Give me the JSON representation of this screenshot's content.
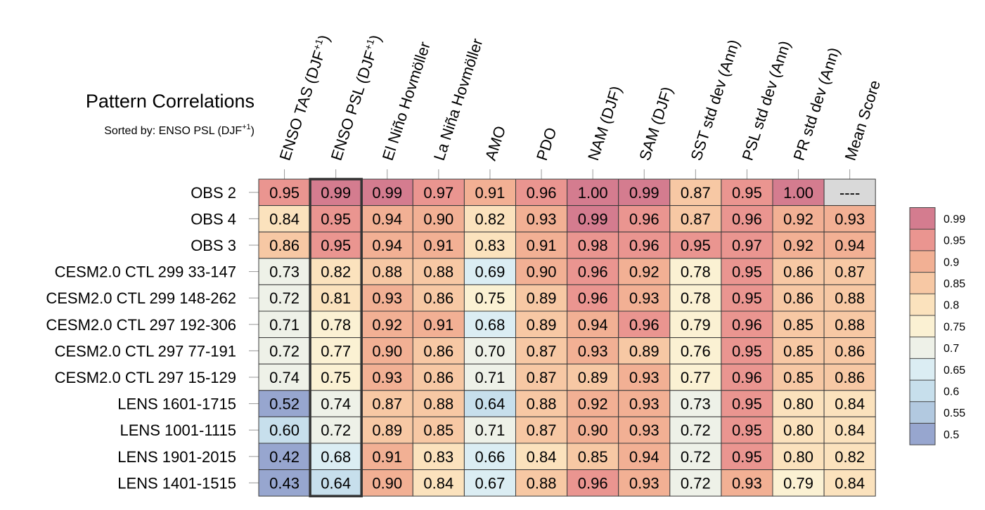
{
  "chart_data": {
    "type": "heatmap",
    "title": "Pattern Correlations",
    "subtitle_prefix": "Sorted by: ENSO PSL (DJF",
    "subtitle_sup": "+1",
    "subtitle_suffix": ")",
    "sorted_by_column": 1,
    "columns": [
      {
        "label": "ENSO TAS (DJF",
        "sup": "+1",
        "suffix": ")"
      },
      {
        "label": "ENSO PSL (DJF",
        "sup": "+1",
        "suffix": ")"
      },
      {
        "label": "El Niño Hovmöller",
        "sup": "",
        "suffix": ""
      },
      {
        "label": "La Niña Hovmöller",
        "sup": "",
        "suffix": ""
      },
      {
        "label": "AMO",
        "sup": "",
        "suffix": ""
      },
      {
        "label": "PDO",
        "sup": "",
        "suffix": ""
      },
      {
        "label": "NAM (DJF)",
        "sup": "",
        "suffix": ""
      },
      {
        "label": "SAM (DJF)",
        "sup": "",
        "suffix": ""
      },
      {
        "label": "SST std dev (Ann)",
        "sup": "",
        "suffix": ""
      },
      {
        "label": "PSL std dev (Ann)",
        "sup": "",
        "suffix": ""
      },
      {
        "label": "PR std dev (Ann)",
        "sup": "",
        "suffix": ""
      },
      {
        "label": "Mean Score",
        "sup": "",
        "suffix": ""
      }
    ],
    "rows": [
      "OBS 2",
      "OBS 4",
      "OBS 3",
      "CESM2.0 CTL 299 33-147",
      "CESM2.0 CTL 299 148-262",
      "CESM2.0 CTL 297 192-306",
      "CESM2.0 CTL 297 77-191",
      "CESM2.0 CTL 297 15-129",
      "LENS 1601-1715",
      "LENS 1001-1115",
      "LENS 1901-2015",
      "LENS 1401-1515"
    ],
    "values": [
      [
        0.95,
        0.99,
        0.99,
        0.97,
        0.91,
        0.96,
        1.0,
        0.99,
        0.87,
        0.95,
        1.0,
        null
      ],
      [
        0.84,
        0.95,
        0.94,
        0.9,
        0.82,
        0.93,
        0.99,
        0.96,
        0.87,
        0.96,
        0.92,
        0.93
      ],
      [
        0.86,
        0.95,
        0.94,
        0.91,
        0.83,
        0.91,
        0.98,
        0.96,
        0.95,
        0.97,
        0.92,
        0.94
      ],
      [
        0.73,
        0.82,
        0.88,
        0.88,
        0.69,
        0.9,
        0.96,
        0.92,
        0.78,
        0.95,
        0.86,
        0.87
      ],
      [
        0.72,
        0.81,
        0.93,
        0.86,
        0.75,
        0.89,
        0.96,
        0.93,
        0.78,
        0.95,
        0.86,
        0.88
      ],
      [
        0.71,
        0.78,
        0.92,
        0.91,
        0.68,
        0.89,
        0.94,
        0.96,
        0.79,
        0.96,
        0.85,
        0.88
      ],
      [
        0.72,
        0.77,
        0.9,
        0.86,
        0.7,
        0.87,
        0.93,
        0.89,
        0.76,
        0.95,
        0.85,
        0.86
      ],
      [
        0.74,
        0.75,
        0.93,
        0.86,
        0.71,
        0.87,
        0.89,
        0.93,
        0.77,
        0.96,
        0.85,
        0.86
      ],
      [
        0.52,
        0.74,
        0.87,
        0.88,
        0.64,
        0.88,
        0.92,
        0.93,
        0.73,
        0.95,
        0.8,
        0.84
      ],
      [
        0.6,
        0.72,
        0.89,
        0.85,
        0.71,
        0.87,
        0.9,
        0.93,
        0.72,
        0.95,
        0.8,
        0.84
      ],
      [
        0.42,
        0.68,
        0.91,
        0.83,
        0.66,
        0.84,
        0.85,
        0.94,
        0.72,
        0.95,
        0.8,
        0.82
      ],
      [
        0.43,
        0.64,
        0.9,
        0.84,
        0.67,
        0.88,
        0.96,
        0.93,
        0.72,
        0.93,
        0.79,
        0.84
      ]
    ],
    "missing_label": "----",
    "missing_color": "#d9d9d9",
    "colorbar": {
      "bounds": [
        0.5,
        0.55,
        0.6,
        0.65,
        0.7,
        0.75,
        0.8,
        0.85,
        0.9,
        0.95,
        0.99
      ],
      "tick_labels": [
        "0.5",
        "0.55",
        "0.6",
        "0.65",
        "0.7",
        "0.75",
        "0.8",
        "0.85",
        "0.9",
        "0.95",
        "0.99"
      ],
      "colors": [
        "#97a6cf",
        "#b2c9e0",
        "#c7dfec",
        "#dbedf3",
        "#eef1e8",
        "#fbf1d3",
        "#fbe2bd",
        "#f7c8a4",
        "#f2b094",
        "#ea9590",
        "#d47c8f"
      ]
    }
  }
}
